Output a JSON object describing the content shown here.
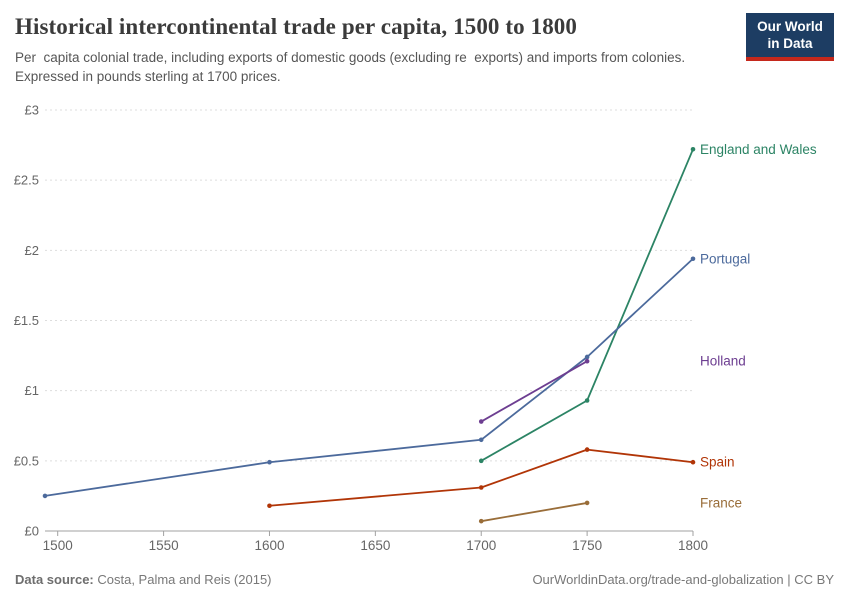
{
  "header": {
    "title": "Historical intercontinental trade per capita, 1500 to 1800",
    "subtitle": "Per  capita colonial trade, including exports of domestic goods (excluding re  exports) and imports from colonies.\nExpressed in pounds sterling at 1700 prices.",
    "logo": {
      "line1": "Our World",
      "line2": "in Data",
      "bg_color": "#1d3d63",
      "accent_color": "#c5281c"
    }
  },
  "chart_data": {
    "type": "line",
    "title": "Historical intercontinental trade per capita, 1500 to 1800",
    "xlabel": "",
    "ylabel": "Pounds sterling at 1700 prices",
    "xlim": [
      1494,
      1800
    ],
    "ylim": [
      0,
      3
    ],
    "grid": "horizontal-dashed",
    "legend_position": "right-end-labels",
    "x_ticks": [
      1500,
      1550,
      1600,
      1650,
      1700,
      1750,
      1800
    ],
    "y_ticks": [
      {
        "value": 0,
        "label": "£0"
      },
      {
        "value": 0.5,
        "label": "£0.5"
      },
      {
        "value": 1,
        "label": "£1"
      },
      {
        "value": 1.5,
        "label": "£1.5"
      },
      {
        "value": 2,
        "label": "£2"
      },
      {
        "value": 2.5,
        "label": "£2.5"
      },
      {
        "value": 3,
        "label": "£3"
      }
    ],
    "series": [
      {
        "name": "England and Wales",
        "color": "#2C8465",
        "points": [
          [
            1700,
            0.5
          ],
          [
            1750,
            0.93
          ],
          [
            1800,
            2.72
          ]
        ]
      },
      {
        "name": "Portugal",
        "color": "#4C6A9C",
        "points": [
          [
            1494,
            0.25
          ],
          [
            1600,
            0.49
          ],
          [
            1700,
            0.65
          ],
          [
            1750,
            1.24
          ],
          [
            1800,
            1.94
          ]
        ]
      },
      {
        "name": "Holland",
        "color": "#6D3E91",
        "points": [
          [
            1700,
            0.78
          ],
          [
            1750,
            1.21
          ]
        ]
      },
      {
        "name": "Spain",
        "color": "#B13507",
        "points": [
          [
            1600,
            0.18
          ],
          [
            1700,
            0.31
          ],
          [
            1750,
            0.58
          ],
          [
            1800,
            0.49
          ]
        ]
      },
      {
        "name": "France",
        "color": "#996D39",
        "points": [
          [
            1700,
            0.07
          ],
          [
            1750,
            0.2
          ]
        ]
      }
    ],
    "axis_color": "#a1a1a1",
    "grid_color": "#dddddd",
    "tick_text_color": "#666666"
  },
  "footer": {
    "source_label": "Data source:",
    "source_value": " Costa, Palma and Reis (2015)",
    "credit": "OurWorldinData.org/trade-and-globalization | CC BY"
  }
}
